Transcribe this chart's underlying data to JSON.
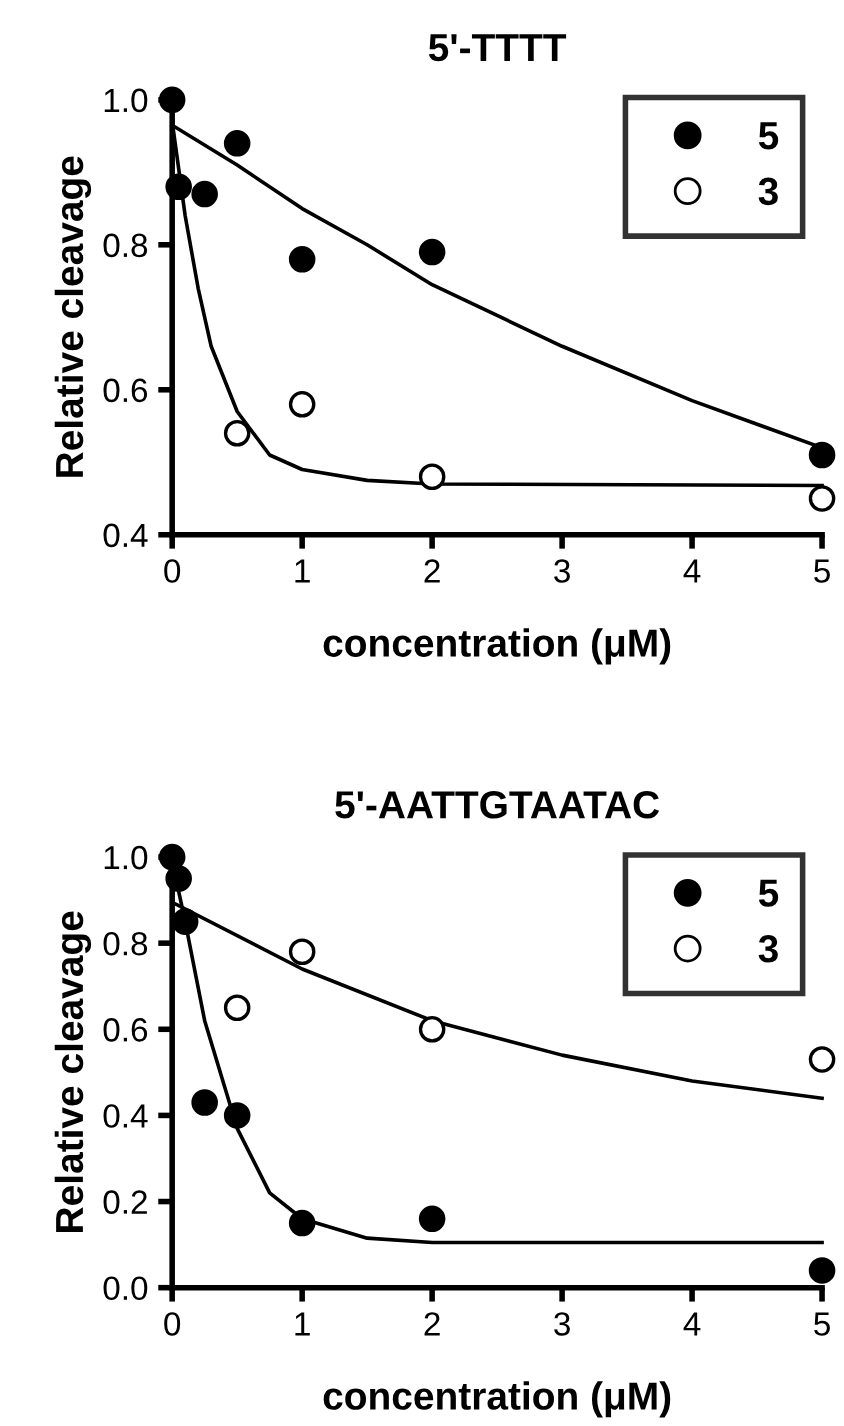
{
  "chart_data": [
    {
      "type": "scatter",
      "title": "5'-TTTT",
      "xlabel": "concentration (μM)",
      "ylabel": "Relative cleavage",
      "xlim": [
        0,
        5
      ],
      "ylim": [
        0.4,
        1.0
      ],
      "xticks": [
        0,
        1,
        2,
        3,
        4,
        5
      ],
      "yticks": [
        {
          "value": 0.4,
          "label": "0.4"
        },
        {
          "value": 0.6,
          "label": "0.6"
        },
        {
          "value": 0.8,
          "label": "0.8"
        },
        {
          "value": 1.0,
          "label": "1.0"
        }
      ],
      "grid": false,
      "legend": "top right",
      "marker": "circle",
      "series": [
        {
          "name": "5",
          "color": "#000000",
          "x": [
            0,
            0.05,
            0.25,
            0.5,
            1,
            2,
            5
          ],
          "values": [
            1.0,
            0.88,
            0.87,
            0.94,
            0.78,
            0.79,
            0.51
          ]
        },
        {
          "name": "3",
          "color": "#ffffff",
          "x": [
            0.5,
            1,
            2,
            5
          ],
          "values": [
            0.54,
            0.58,
            0.48,
            0.45
          ]
        },
        {
          "type": "line",
          "color": "#000000",
          "marker": "none",
          "line_style": "solid",
          "x": [
            0,
            0.5,
            1,
            1.5,
            2,
            3,
            4,
            5
          ],
          "values": [
            0.965,
            0.91,
            0.85,
            0.8,
            0.745,
            0.66,
            0.585,
            0.52
          ]
        },
        {
          "type": "line",
          "color": "#000000",
          "marker": "none",
          "line_style": "solid",
          "x": [
            0,
            0.1,
            0.2,
            0.3,
            0.5,
            0.75,
            1,
            1.5,
            2,
            5
          ],
          "values": [
            0.97,
            0.84,
            0.74,
            0.66,
            0.57,
            0.51,
            0.49,
            0.475,
            0.47,
            0.468
          ]
        }
      ]
    },
    {
      "type": "scatter",
      "title": "5'-AATTGTAATAC",
      "xlabel": "concentration (μM)",
      "ylabel": "Relative cleavage",
      "xlim": [
        0,
        5
      ],
      "ylim": [
        0.0,
        1.0
      ],
      "xticks": [
        0,
        1,
        2,
        3,
        4,
        5
      ],
      "yticks": [
        {
          "value": 0.0,
          "label": "0.0"
        },
        {
          "value": 0.2,
          "label": "0.2"
        },
        {
          "value": 0.4,
          "label": "0.4"
        },
        {
          "value": 0.6,
          "label": "0.6"
        },
        {
          "value": 0.8,
          "label": "0.8"
        },
        {
          "value": 1.0,
          "label": "1.0"
        }
      ],
      "grid": false,
      "legend": "top right",
      "marker": "circle",
      "series": [
        {
          "name": "5",
          "color": "#000000",
          "x": [
            0,
            0.05,
            0.1,
            0.25,
            0.5,
            1,
            2,
            5
          ],
          "values": [
            1.0,
            0.95,
            0.85,
            0.43,
            0.4,
            0.15,
            0.16,
            0.04
          ]
        },
        {
          "name": "3",
          "color": "#ffffff",
          "x": [
            0.5,
            1,
            2,
            5
          ],
          "values": [
            0.65,
            0.78,
            0.6,
            0.53
          ]
        },
        {
          "type": "line",
          "color": "#000000",
          "marker": "none",
          "line_style": "solid",
          "x": [
            0.05,
            0.1,
            0.25,
            0.5,
            0.75,
            1,
            1.5,
            2,
            5
          ],
          "values": [
            0.92,
            0.85,
            0.62,
            0.37,
            0.22,
            0.16,
            0.115,
            0.105,
            0.105
          ]
        },
        {
          "type": "line",
          "color": "#000000",
          "marker": "none",
          "line_style": "solid",
          "x": [
            0,
            1,
            2,
            3,
            4,
            5
          ],
          "values": [
            0.895,
            0.74,
            0.62,
            0.54,
            0.48,
            0.44
          ]
        }
      ]
    }
  ]
}
